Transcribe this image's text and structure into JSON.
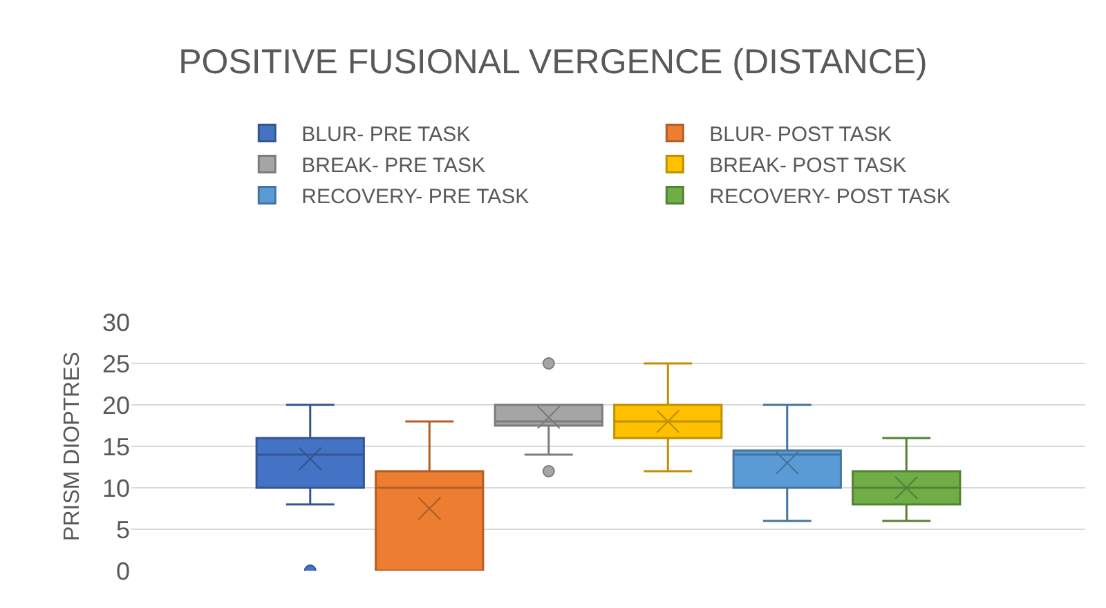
{
  "chart_data": {
    "type": "box",
    "title": "POSITIVE FUSIONAL VERGENCE (DISTANCE)",
    "ylabel": "PRISM DIOPTRES",
    "categories": [
      null
    ],
    "ylim": [
      0,
      30
    ],
    "yticks": [
      0,
      5,
      10,
      15,
      20,
      25,
      30
    ],
    "grid": "y",
    "legend": "top",
    "tick_labels": "y",
    "marker": "cross",
    "series": [
      {
        "name": "BLUR- PRE TASK",
        "color": "#4472c4",
        "boxes": [
          {
            "low": 8,
            "q1": 10,
            "median": 14,
            "q3": 16,
            "high": 20,
            "mean": 13.5,
            "outliers": [
              0
            ]
          }
        ]
      },
      {
        "name": "BLUR- POST TASK",
        "color": "#ed7d31",
        "boxes": [
          {
            "low": 0,
            "q1": 0,
            "median": 10,
            "q3": 12,
            "high": 18,
            "mean": 7.5
          }
        ]
      },
      {
        "name": "BREAK- PRE TASK",
        "color": "#a5a5a5",
        "boxes": [
          {
            "low": 14,
            "q1": 17.5,
            "median": 18,
            "q3": 20,
            "high": 20,
            "mean": 18.5,
            "outliers": [
              12,
              25
            ]
          }
        ]
      },
      {
        "name": "BREAK- POST TASK",
        "color": "#ffc000",
        "boxes": [
          {
            "low": 12,
            "q1": 16,
            "median": 18,
            "q3": 20,
            "high": 25,
            "mean": 18
          }
        ]
      },
      {
        "name": "RECOVERY- PRE TASK",
        "color": "#5b9bd5",
        "boxes": [
          {
            "low": 6,
            "q1": 10,
            "median": 14,
            "q3": 14.5,
            "high": 20,
            "mean": 13
          }
        ]
      },
      {
        "name": "RECOVERY- POST TASK",
        "color": "#70ad47",
        "boxes": [
          {
            "low": 6,
            "q1": 8,
            "median": 10,
            "q3": 12,
            "high": 16,
            "mean": 10
          }
        ]
      }
    ]
  }
}
